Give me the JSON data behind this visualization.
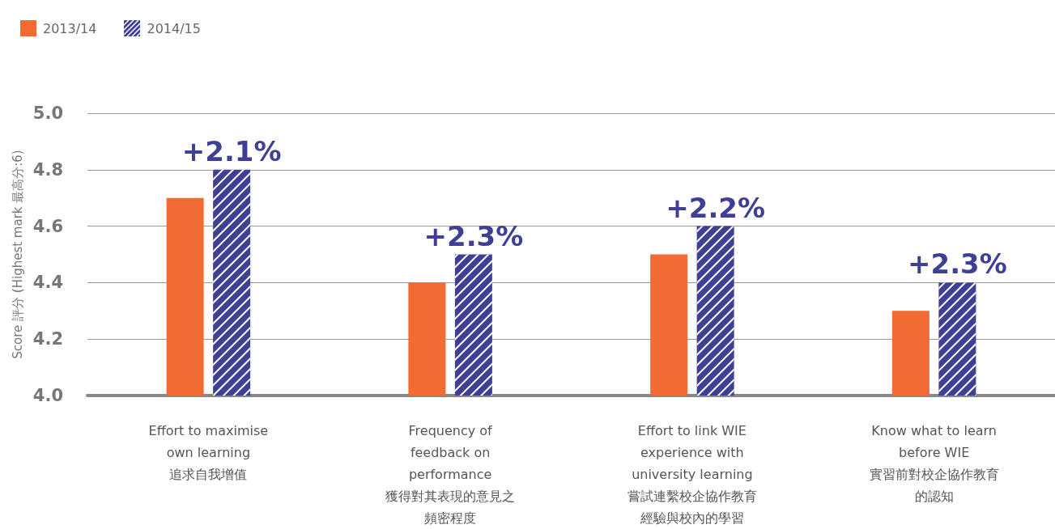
{
  "chart_data": {
    "type": "bar",
    "ylabel": "Score 評分 (Highest mark 最高分:6)",
    "categories": [
      "Effort to maximise\nown learning\n追求自我增值",
      "Frequency of\nfeedback on\nperformance\n獲得對其表現的意見之頻密程度",
      "Effort to link WIE\nexperience with\nuniversity learning\n嘗試連繫校企協作教育經驗與校內的學習",
      "Know what to learn\nbefore WIE\n實習前對校企協作教育的認知"
    ],
    "series": [
      {
        "name": "2013/14",
        "color": "#f26b35",
        "values": [
          4.7,
          4.4,
          4.5,
          4.3
        ]
      },
      {
        "name": "2014/15",
        "color": "#3f3f96",
        "values": [
          4.8,
          4.5,
          4.6,
          4.4
        ]
      }
    ],
    "ylim": [
      4.0,
      5.0
    ],
    "yticks": [
      {
        "value": 4.0,
        "label": "4.0"
      },
      {
        "value": 4.2,
        "label": "4.2"
      },
      {
        "value": 4.4,
        "label": "4.4"
      },
      {
        "value": 4.6,
        "label": "4.6"
      },
      {
        "value": 4.8,
        "label": "4.8"
      },
      {
        "value": 5.0,
        "label": "5.0"
      }
    ],
    "annotations": [
      "+2.1%",
      "+2.3%",
      "+2.2%",
      "+2.3%"
    ],
    "grid": "y",
    "legend": "top left"
  }
}
